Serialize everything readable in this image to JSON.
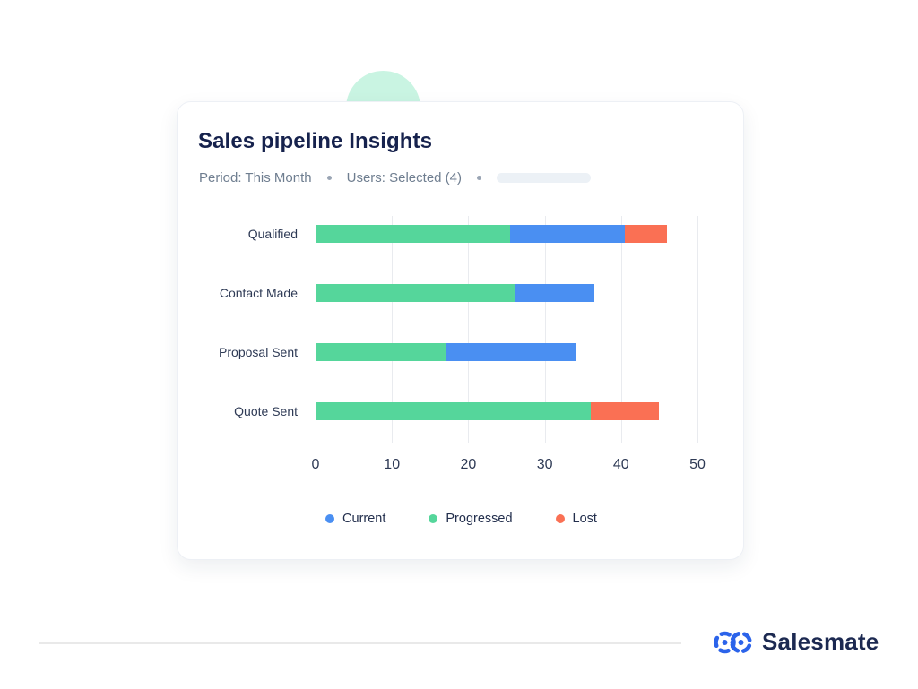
{
  "card": {
    "title": "Sales pipeline Insights",
    "filters": {
      "period": "Period: This Month",
      "users": "Users: Selected (4)"
    }
  },
  "footer": {
    "brand": "Salesmate"
  },
  "colors": {
    "current": "#4a8ff2",
    "progressed": "#55d69b",
    "lost": "#fa7054",
    "accent_mint": "#c9f4e2",
    "brand_blue": "#2b63ea",
    "title_navy": "#16224d",
    "gridline": "#e9ebef"
  },
  "chart_data": {
    "type": "bar",
    "orientation": "horizontal",
    "stacked": true,
    "title": "Sales pipeline Insights",
    "categories": [
      "Qualified",
      "Contact Made",
      "Proposal Sent",
      "Quote Sent"
    ],
    "series": [
      {
        "name": "Current",
        "color": "#4a8ff2",
        "values": [
          15,
          10.5,
          17,
          0
        ]
      },
      {
        "name": "Progressed",
        "color": "#55d69b",
        "values": [
          25.5,
          26,
          17,
          36
        ]
      },
      {
        "name": "Lost",
        "color": "#fa7054",
        "values": [
          5.5,
          0,
          0,
          9
        ]
      }
    ],
    "stack_order": [
      1,
      0,
      2
    ],
    "x_ticks": [
      0,
      10,
      20,
      30,
      40,
      50
    ],
    "xlim": [
      0,
      50
    ],
    "grid": true,
    "legend_position": "bottom"
  }
}
